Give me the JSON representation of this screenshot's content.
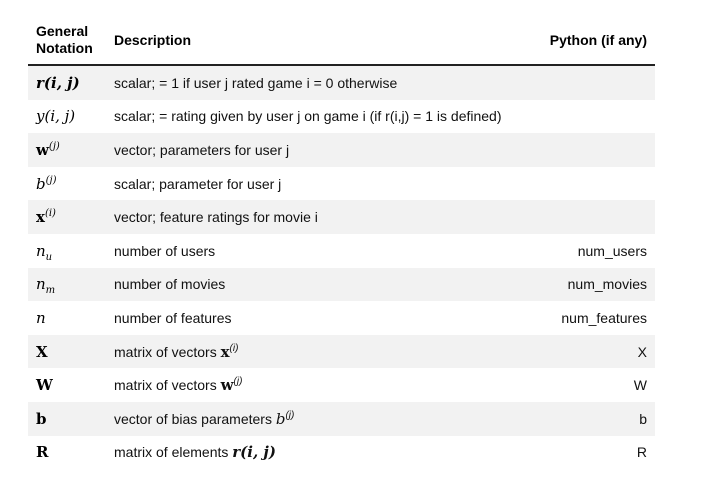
{
  "header": {
    "col1_line1": "General",
    "col1_line2": "Notation",
    "col2": "Description",
    "col3": "Python (if any)"
  },
  "rows": [
    {
      "notation": {
        "base": "r(i, j)"
      },
      "description": "scalar; = 1 if user j rated game i = 0 otherwise",
      "python": ""
    },
    {
      "notation": {
        "base": "y(i, j)"
      },
      "description": "scalar; = rating given by user j on game i (if r(i,j) = 1 is defined)",
      "python": ""
    },
    {
      "notation": {
        "base": "w",
        "sup": "(j)"
      },
      "description": "vector; parameters for user j",
      "python": ""
    },
    {
      "notation": {
        "base": "b",
        "sup": "(j)"
      },
      "description": "scalar; parameter for user j",
      "python": ""
    },
    {
      "notation": {
        "base": "x",
        "sup": "(i)"
      },
      "description": "vector; feature ratings for movie i",
      "python": ""
    },
    {
      "notation": {
        "base": "n",
        "sub": "u"
      },
      "description": "number of users",
      "python": "num_users"
    },
    {
      "notation": {
        "base": "n",
        "sub": "m"
      },
      "description": "number of movies",
      "python": "num_movies"
    },
    {
      "notation": {
        "base": "n"
      },
      "description": "number of features",
      "python": "num_features"
    },
    {
      "notation": {
        "base": "X"
      },
      "description": "matrix of vectors",
      "desc_math": {
        "base": "x",
        "sup": "(i)"
      },
      "python": "X"
    },
    {
      "notation": {
        "base": "W"
      },
      "description": "matrix of vectors",
      "desc_math": {
        "base": "w",
        "sup": "(j)"
      },
      "python": "W"
    },
    {
      "notation": {
        "base": "b"
      },
      "description": "vector of bias parameters",
      "desc_math": {
        "base": "b",
        "sup": "(j)"
      },
      "python": "b"
    },
    {
      "notation": {
        "base": "R"
      },
      "description": "matrix of elements",
      "desc_math": {
        "base": "r(i, j)"
      },
      "python": "R"
    }
  ]
}
